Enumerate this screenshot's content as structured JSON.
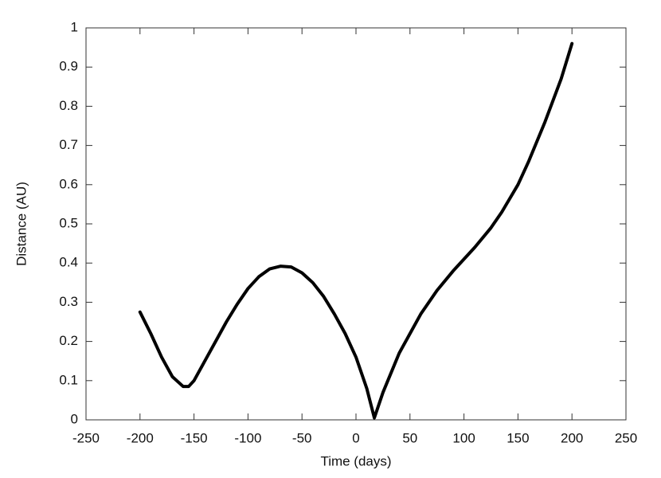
{
  "chart_data": {
    "type": "line",
    "x_label": "Time (days)",
    "y_label": "Distance (AU)",
    "x": [
      -200,
      -190,
      -180,
      -170,
      -160,
      -155,
      -150,
      -140,
      -130,
      -120,
      -110,
      -100,
      -90,
      -80,
      -70,
      -60,
      -50,
      -40,
      -30,
      -20,
      -10,
      0,
      10,
      17,
      25,
      40,
      50,
      60,
      75,
      90,
      100,
      110,
      125,
      135,
      150,
      160,
      175,
      190,
      200
    ],
    "series": [
      {
        "color": "#000000",
        "values": [
          0.275,
          0.22,
          0.16,
          0.11,
          0.085,
          0.085,
          0.1,
          0.15,
          0.2,
          0.25,
          0.295,
          0.335,
          0.365,
          0.385,
          0.392,
          0.39,
          0.375,
          0.35,
          0.315,
          0.27,
          0.22,
          0.16,
          0.08,
          0.005,
          0.07,
          0.17,
          0.22,
          0.27,
          0.33,
          0.38,
          0.41,
          0.44,
          0.49,
          0.53,
          0.6,
          0.66,
          0.76,
          0.87,
          0.96
        ]
      }
    ],
    "xlim": [
      -250,
      250
    ],
    "xticks": [
      -250,
      -200,
      -150,
      -100,
      -50,
      0,
      50,
      100,
      150,
      200,
      250
    ],
    "ylim": [
      0,
      1
    ],
    "yticks": [
      0,
      0.1,
      0.2,
      0.3,
      0.4,
      0.5,
      0.6,
      0.7,
      0.8,
      0.9,
      1
    ]
  }
}
